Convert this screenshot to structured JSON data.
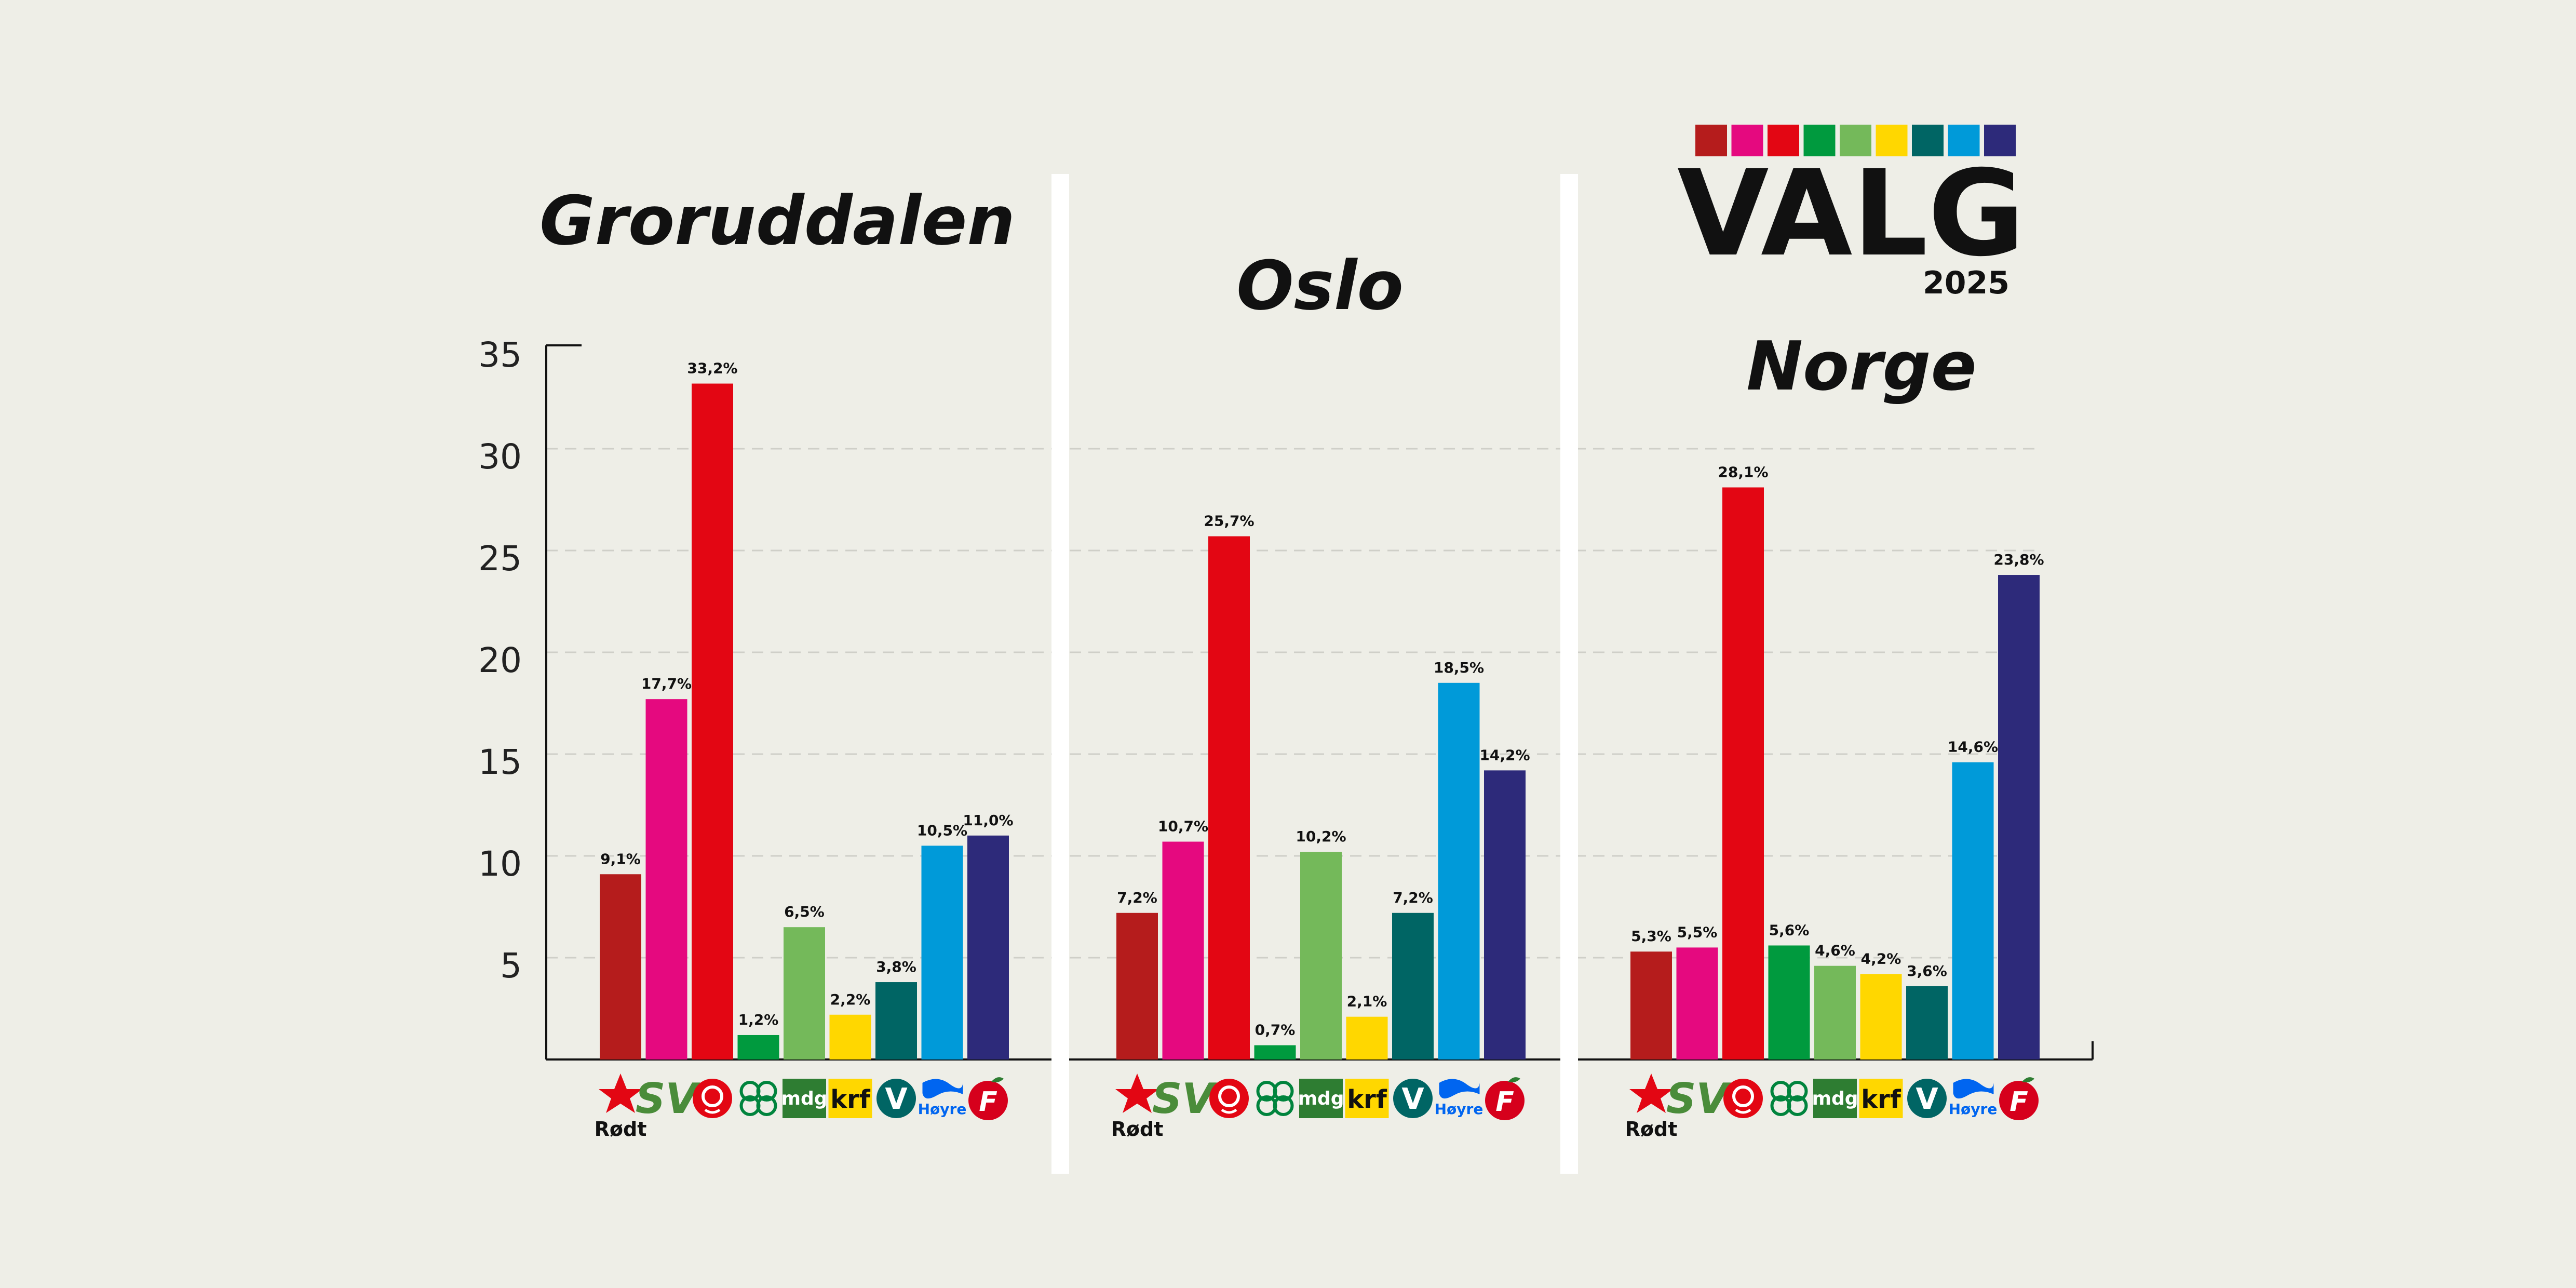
{
  "logo": {
    "title": "VALG",
    "year": "2025",
    "stripe_colors": [
      "#b51c1c",
      "#e5097f",
      "#e30613",
      "#009a3e",
      "#74b95a",
      "#ffd700",
      "#006564",
      "#009ad9",
      "#2d2a7a"
    ]
  },
  "axis": {
    "ticks": [
      "5",
      "10",
      "15",
      "20",
      "25",
      "30",
      "35"
    ],
    "tick_values": [
      5,
      10,
      15,
      20,
      25,
      30,
      35
    ]
  },
  "parties": [
    {
      "name": "Rødt",
      "label": "Rødt",
      "icon": "rodt-logo-icon",
      "color": "#b51c1c"
    },
    {
      "name": "SV",
      "label": "SV",
      "icon": "sv-logo-icon",
      "color": "#e5097f"
    },
    {
      "name": "Ap",
      "label": "",
      "icon": "ap-rose-logo-icon",
      "color": "#e30613"
    },
    {
      "name": "Sp",
      "label": "",
      "icon": "sp-clover-logo-icon",
      "color": "#009a3e"
    },
    {
      "name": "MDG",
      "label": "mdg",
      "icon": "mdg-logo-icon",
      "color": "#74b95a"
    },
    {
      "name": "KrF",
      "label": "krf",
      "icon": "krf-logo-icon",
      "color": "#ffd700"
    },
    {
      "name": "V",
      "label": "V",
      "icon": "venstre-logo-icon",
      "color": "#006564"
    },
    {
      "name": "Høyre",
      "label": "Høyre",
      "icon": "hoyre-logo-icon",
      "color": "#009ad9"
    },
    {
      "name": "FrP",
      "label": "F",
      "icon": "frp-logo-icon",
      "color": "#2d2a7a"
    }
  ],
  "chart_data": [
    {
      "type": "bar",
      "title": "Groruddalen",
      "categories": [
        "Rødt",
        "SV",
        "Ap",
        "Sp",
        "MDG",
        "KrF",
        "V",
        "Høyre",
        "FrP"
      ],
      "values": [
        9.1,
        17.7,
        33.2,
        1.2,
        6.5,
        2.2,
        3.8,
        10.5,
        11.0
      ],
      "labels": [
        "9,1%",
        "17,7%",
        "33,2%",
        "1,2%",
        "6,5%",
        "2,2%",
        "3,8%",
        "10,5%",
        "11,0%"
      ],
      "ylim": [
        0,
        35
      ]
    },
    {
      "type": "bar",
      "title": "Oslo",
      "categories": [
        "Rødt",
        "SV",
        "Ap",
        "Sp",
        "MDG",
        "KrF",
        "V",
        "Høyre",
        "FrP"
      ],
      "values": [
        7.2,
        10.7,
        25.7,
        0.7,
        10.2,
        2.1,
        7.2,
        18.5,
        14.2
      ],
      "labels": [
        "7,2%",
        "10,7%",
        "25,7%",
        "0,7%",
        "10,2%",
        "2,1%",
        "7,2%",
        "18,5%",
        "14,2%"
      ],
      "ylim": [
        0,
        35
      ]
    },
    {
      "type": "bar",
      "title": "Norge",
      "categories": [
        "Rødt",
        "SV",
        "Ap",
        "Sp",
        "MDG",
        "KrF",
        "V",
        "Høyre",
        "FrP"
      ],
      "values": [
        5.3,
        5.5,
        28.1,
        5.6,
        4.6,
        4.2,
        3.6,
        14.6,
        23.8
      ],
      "labels": [
        "5,3%",
        "5,5%",
        "28,1%",
        "5,6%",
        "4,6%",
        "4,2%",
        "3,6%",
        "14,6%",
        "23,8%"
      ],
      "ylim": [
        0,
        35
      ]
    }
  ]
}
